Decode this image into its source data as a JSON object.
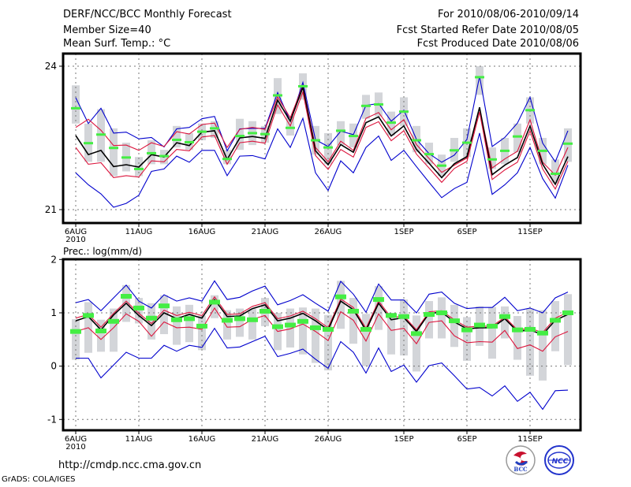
{
  "header": {
    "title": "DERF/NCC/BCC Monthly Forecast",
    "member_size": "Member Size=40",
    "variable": "Mean Surf. Temp.: °C",
    "period": "For 2010/08/06-2010/09/14",
    "started": "Fcst Started Refer Date 2010/08/05",
    "produced": "Fcst Produced Date 2010/08/06"
  },
  "footer": {
    "url": "http://cmdp.ncc.cma.gov.cn",
    "credit": "GrADS: COLA/IGES",
    "logos": [
      "BCC",
      "NCC"
    ]
  },
  "colors": {
    "ensemble_mean": "#000000",
    "inner_band": "#dc143c",
    "outer_band": "#0000cd",
    "median_marker": "#44ee44",
    "box": "#d3d5d9",
    "grid": "#777777"
  },
  "chart_data": [
    {
      "type": "line",
      "title": "Mean Surf. Temp.: °C",
      "x": [
        "6AUG",
        "7AUG",
        "8AUG",
        "9AUG",
        "10AUG",
        "11AUG",
        "12AUG",
        "13AUG",
        "14AUG",
        "15AUG",
        "16AUG",
        "17AUG",
        "18AUG",
        "19AUG",
        "20AUG",
        "21AUG",
        "22AUG",
        "23AUG",
        "24AUG",
        "25AUG",
        "26AUG",
        "27AUG",
        "28AUG",
        "29AUG",
        "30AUG",
        "31AUG",
        "1SEP",
        "2SEP",
        "3SEP",
        "4SEP",
        "5SEP",
        "6SEP",
        "7SEP",
        "8SEP",
        "9SEP",
        "10SEP",
        "11SEP",
        "12SEP",
        "13SEP",
        "14SEP"
      ],
      "xticks": [
        "6AUG",
        "11AUG",
        "16AUG",
        "21AUG",
        "26AUG",
        "1SEP",
        "6SEP",
        "11SEP"
      ],
      "xtick_sub": "2010",
      "yticks": [
        21,
        24
      ],
      "ylim": [
        20.7,
        24.27
      ],
      "grid": true,
      "series": [
        {
          "name": "outer-upper",
          "role": "outer_band",
          "values": [
            23.34,
            22.8,
            23.12,
            22.6,
            22.62,
            22.48,
            22.51,
            22.31,
            22.69,
            22.72,
            22.9,
            22.95,
            22.23,
            22.69,
            22.7,
            22.7,
            23.45,
            22.85,
            23.66,
            22.46,
            22.32,
            22.64,
            22.57,
            23.18,
            23.22,
            22.85,
            23.08,
            22.47,
            22.17,
            21.99,
            22.14,
            22.47,
            23.79,
            22.32,
            22.51,
            22.81,
            23.35,
            22.39,
            22.0,
            22.65
          ]
        },
        {
          "name": "inner-upper",
          "role": "inner_band",
          "values": [
            22.72,
            22.89,
            22.66,
            22.34,
            22.35,
            22.24,
            22.4,
            22.32,
            22.63,
            22.58,
            22.78,
            22.81,
            22.3,
            22.68,
            22.72,
            22.68,
            23.36,
            22.92,
            23.59,
            22.3,
            22.0,
            22.43,
            22.24,
            22.91,
            23.03,
            22.67,
            22.88,
            22.36,
            22.07,
            21.78,
            21.93,
            22.08,
            23.12,
            21.87,
            22.06,
            22.22,
            22.88,
            21.99,
            21.72,
            22.3
          ]
        },
        {
          "name": "ensemble-mean",
          "role": "ensemble_mean",
          "values": [
            22.55,
            22.15,
            22.24,
            21.9,
            21.94,
            21.89,
            22.15,
            22.1,
            22.4,
            22.34,
            22.62,
            22.65,
            22.05,
            22.5,
            22.53,
            22.49,
            23.29,
            22.85,
            23.56,
            22.23,
            21.94,
            22.36,
            22.2,
            22.82,
            22.94,
            22.54,
            22.75,
            22.26,
            21.97,
            21.67,
            21.96,
            22.11,
            23.14,
            21.73,
            21.93,
            22.09,
            22.75,
            21.95,
            21.53,
            22.11
          ]
        },
        {
          "name": "inner-lower",
          "role": "inner_band",
          "values": [
            22.3,
            21.95,
            21.98,
            21.67,
            21.71,
            21.68,
            22.02,
            22.0,
            22.26,
            22.23,
            22.52,
            22.55,
            21.95,
            22.4,
            22.43,
            22.39,
            23.19,
            22.75,
            23.46,
            22.13,
            21.84,
            22.26,
            22.1,
            22.72,
            22.84,
            22.44,
            22.65,
            22.16,
            21.87,
            21.57,
            21.86,
            22.01,
            23.04,
            21.63,
            21.83,
            21.99,
            22.65,
            21.85,
            21.43,
            22.01
          ]
        },
        {
          "name": "outer-lower",
          "role": "outer_band",
          "values": [
            21.77,
            21.52,
            21.33,
            21.05,
            21.13,
            21.3,
            21.8,
            21.85,
            22.12,
            21.99,
            22.24,
            22.24,
            21.71,
            22.12,
            22.13,
            22.06,
            22.69,
            22.3,
            22.91,
            21.77,
            21.4,
            22.02,
            21.77,
            22.3,
            22.54,
            22.03,
            22.24,
            21.9,
            21.57,
            21.25,
            21.44,
            21.57,
            22.6,
            21.32,
            21.52,
            21.77,
            22.3,
            21.65,
            21.24,
            21.93
          ]
        },
        {
          "name": "median",
          "role": "median_marker",
          "values": [
            23.12,
            22.39,
            22.57,
            22.29,
            22.09,
            21.85,
            22.18,
            22.12,
            22.46,
            22.41,
            22.63,
            22.7,
            22.06,
            22.54,
            22.6,
            22.58,
            23.39,
            22.71,
            23.58,
            22.45,
            22.3,
            22.65,
            22.54,
            23.17,
            23.2,
            22.82,
            23.05,
            22.45,
            22.16,
            21.92,
            22.24,
            22.4,
            23.77,
            22.05,
            22.23,
            22.53,
            23.08,
            22.23,
            21.75,
            22.38
          ]
        }
      ],
      "box_ranges": [
        [
          22.8,
          23.6
        ],
        [
          22.0,
          22.8
        ],
        [
          22.0,
          23.1
        ],
        [
          21.7,
          22.7
        ],
        [
          21.8,
          22.4
        ],
        [
          21.7,
          22.1
        ],
        [
          21.95,
          22.45
        ],
        [
          21.95,
          22.25
        ],
        [
          22.3,
          22.75
        ],
        [
          22.25,
          22.6
        ],
        [
          22.45,
          22.8
        ],
        [
          22.5,
          22.85
        ],
        [
          21.95,
          22.25
        ],
        [
          22.25,
          22.9
        ],
        [
          22.35,
          22.85
        ],
        [
          22.4,
          22.75
        ],
        [
          23.0,
          23.75
        ],
        [
          22.55,
          22.95
        ],
        [
          23.3,
          23.85
        ],
        [
          22.15,
          22.75
        ],
        [
          21.95,
          22.6
        ],
        [
          22.35,
          22.85
        ],
        [
          22.3,
          22.8
        ],
        [
          22.9,
          23.4
        ],
        [
          22.95,
          23.45
        ],
        [
          22.55,
          23.05
        ],
        [
          22.75,
          23.35
        ],
        [
          22.2,
          22.75
        ],
        [
          21.95,
          22.4
        ],
        [
          21.7,
          22.15
        ],
        [
          22.0,
          22.5
        ],
        [
          22.1,
          22.7
        ],
        [
          23.4,
          24.0
        ],
        [
          21.85,
          22.3
        ],
        [
          21.95,
          22.5
        ],
        [
          22.2,
          22.8
        ],
        [
          22.8,
          23.35
        ],
        [
          21.95,
          22.5
        ],
        [
          21.55,
          22.05
        ],
        [
          22.0,
          22.7
        ]
      ]
    },
    {
      "type": "line",
      "title": "Prec.: log(mm/d)",
      "x": [
        "6AUG",
        "7AUG",
        "8AUG",
        "9AUG",
        "10AUG",
        "11AUG",
        "12AUG",
        "13AUG",
        "14AUG",
        "15AUG",
        "16AUG",
        "17AUG",
        "18AUG",
        "19AUG",
        "20AUG",
        "21AUG",
        "22AUG",
        "23AUG",
        "24AUG",
        "25AUG",
        "26AUG",
        "27AUG",
        "28AUG",
        "29AUG",
        "30AUG",
        "31AUG",
        "1SEP",
        "2SEP",
        "3SEP",
        "4SEP",
        "5SEP",
        "6SEP",
        "7SEP",
        "8SEP",
        "9SEP",
        "10SEP",
        "11SEP",
        "12SEP",
        "13SEP",
        "14SEP"
      ],
      "xticks": [
        "6AUG",
        "11AUG",
        "16AUG",
        "21AUG",
        "26AUG",
        "1SEP",
        "6SEP",
        "11SEP"
      ],
      "xtick_sub": "2010",
      "yticks": [
        -1,
        0,
        1,
        2
      ],
      "ylim": [
        -1.2,
        2
      ],
      "grid": true,
      "series": [
        {
          "name": "outer-upper",
          "role": "outer_band",
          "values": [
            1.19,
            1.25,
            1.04,
            1.28,
            1.52,
            1.22,
            1.09,
            1.34,
            1.22,
            1.28,
            1.22,
            1.6,
            1.25,
            1.29,
            1.41,
            1.5,
            1.15,
            1.23,
            1.34,
            1.18,
            1.03,
            1.59,
            1.35,
            1.01,
            1.54,
            1.24,
            1.24,
            1.0,
            1.35,
            1.39,
            1.18,
            1.08,
            1.1,
            1.1,
            1.29,
            1.04,
            1.09,
            1.0,
            1.28,
            1.39
          ]
        },
        {
          "name": "inner-upper",
          "role": "inner_band",
          "values": [
            0.9,
            0.97,
            0.73,
            0.99,
            1.22,
            0.99,
            0.8,
            1.05,
            0.95,
            1.01,
            0.95,
            1.3,
            0.97,
            0.98,
            1.12,
            1.19,
            0.89,
            0.94,
            1.03,
            0.89,
            0.72,
            1.26,
            1.1,
            0.71,
            1.22,
            0.91,
            0.94,
            0.68,
            1.02,
            1.04,
            0.87,
            0.73,
            0.75,
            0.75,
            0.92,
            0.68,
            0.71,
            0.63,
            0.9,
            1.01
          ]
        },
        {
          "name": "ensemble-mean",
          "role": "ensemble_mean",
          "values": [
            0.85,
            0.93,
            0.68,
            0.96,
            1.18,
            0.95,
            0.76,
            1.0,
            0.89,
            0.97,
            0.9,
            1.25,
            0.93,
            0.94,
            1.08,
            1.15,
            0.85,
            0.9,
            0.99,
            0.85,
            0.68,
            1.22,
            1.06,
            0.67,
            1.18,
            0.87,
            0.91,
            0.65,
            0.99,
            1.01,
            0.83,
            0.7,
            0.72,
            0.72,
            0.89,
            0.65,
            0.68,
            0.59,
            0.86,
            0.97
          ]
        },
        {
          "name": "inner-lower",
          "role": "inner_band",
          "values": [
            0.65,
            0.72,
            0.5,
            0.72,
            0.98,
            0.84,
            0.56,
            0.83,
            0.72,
            0.73,
            0.69,
            1.09,
            0.73,
            0.74,
            0.88,
            0.95,
            0.65,
            0.7,
            0.79,
            0.65,
            0.48,
            1.02,
            0.86,
            0.47,
            0.98,
            0.67,
            0.71,
            0.42,
            0.82,
            0.85,
            0.57,
            0.44,
            0.46,
            0.45,
            0.67,
            0.33,
            0.4,
            0.28,
            0.55,
            0.65
          ]
        },
        {
          "name": "outer-lower",
          "role": "outer_band",
          "values": [
            0.15,
            0.15,
            -0.22,
            0.02,
            0.26,
            0.15,
            0.15,
            0.39,
            0.28,
            0.39,
            0.35,
            0.71,
            0.34,
            0.36,
            0.46,
            0.56,
            0.18,
            0.24,
            0.32,
            0.13,
            -0.04,
            0.46,
            0.26,
            -0.13,
            0.34,
            -0.1,
            0.02,
            -0.3,
            0.01,
            0.06,
            -0.18,
            -0.43,
            -0.4,
            -0.56,
            -0.37,
            -0.66,
            -0.49,
            -0.81,
            -0.46,
            -0.45
          ]
        },
        {
          "name": "median",
          "role": "median_marker",
          "values": [
            0.65,
            0.95,
            0.66,
            0.84,
            1.31,
            1.09,
            0.9,
            1.13,
            0.87,
            0.89,
            0.75,
            1.2,
            0.86,
            0.89,
            0.87,
            1.03,
            0.74,
            0.77,
            0.84,
            0.72,
            0.69,
            1.3,
            1.03,
            0.69,
            1.25,
            0.95,
            0.93,
            0.61,
            0.97,
            1.0,
            0.85,
            0.68,
            0.77,
            0.75,
            0.93,
            0.68,
            0.69,
            0.62,
            0.86,
            1.0
          ]
        }
      ],
      "box_ranges": [
        [
          0.12,
          0.88
        ],
        [
          0.25,
          1.2
        ],
        [
          0.27,
          0.87
        ],
        [
          0.27,
          1.08
        ],
        [
          0.83,
          1.52
        ],
        [
          0.8,
          1.28
        ],
        [
          0.5,
          1.18
        ],
        [
          0.6,
          1.33
        ],
        [
          0.4,
          1.12
        ],
        [
          0.45,
          1.15
        ],
        [
          0.3,
          0.95
        ],
        [
          0.9,
          1.33
        ],
        [
          0.5,
          1.05
        ],
        [
          0.55,
          1.08
        ],
        [
          0.5,
          1.08
        ],
        [
          0.75,
          1.28
        ],
        [
          0.3,
          1.0
        ],
        [
          0.35,
          1.08
        ],
        [
          0.22,
          1.1
        ],
        [
          0.06,
          1.08
        ],
        [
          -0.08,
          0.96
        ],
        [
          0.7,
          1.6
        ],
        [
          0.42,
          1.28
        ],
        [
          0.0,
          0.98
        ],
        [
          0.68,
          1.5
        ],
        [
          0.22,
          1.0
        ],
        [
          0.2,
          1.25
        ],
        [
          -0.1,
          0.95
        ],
        [
          0.52,
          1.22
        ],
        [
          0.52,
          1.29
        ],
        [
          0.36,
          1.15
        ],
        [
          0.1,
          0.92
        ],
        [
          0.38,
          1.12
        ],
        [
          0.14,
          1.11
        ],
        [
          0.52,
          1.12
        ],
        [
          0.12,
          0.94
        ],
        [
          -0.18,
          1.08
        ],
        [
          -0.27,
          1.05
        ],
        [
          0.28,
          1.22
        ],
        [
          0.02,
          1.35
        ]
      ]
    }
  ]
}
